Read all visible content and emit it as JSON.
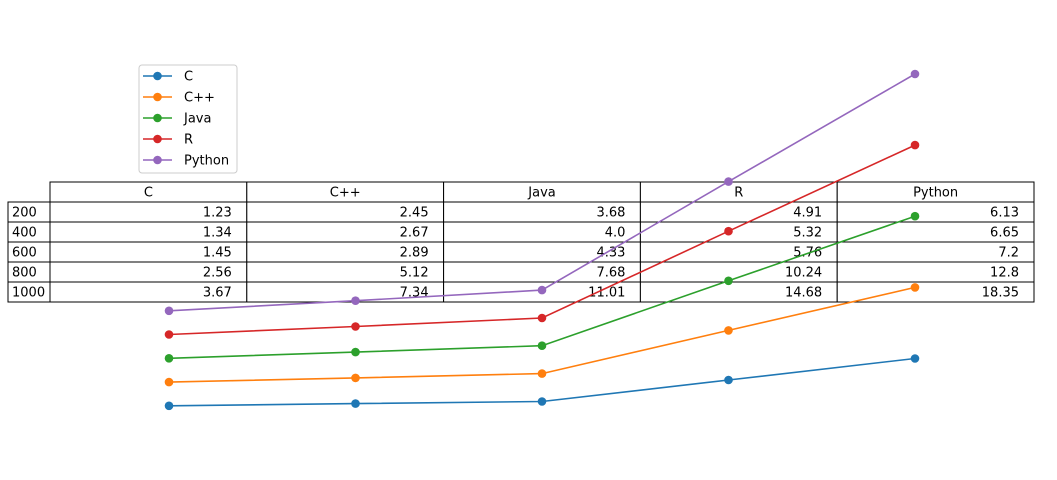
{
  "chart_data": {
    "type": "line",
    "x": [
      200,
      400,
      600,
      800,
      1000
    ],
    "series": [
      {
        "name": "C",
        "color": "#1f77b4",
        "values": [
          1.23,
          1.34,
          1.45,
          2.56,
          3.67
        ]
      },
      {
        "name": "C++",
        "color": "#ff7f0e",
        "values": [
          2.45,
          2.67,
          2.89,
          5.12,
          7.34
        ]
      },
      {
        "name": "Java",
        "color": "#2ca02c",
        "values": [
          3.68,
          4.0,
          4.33,
          7.68,
          11.01
        ]
      },
      {
        "name": "R",
        "color": "#d62728",
        "values": [
          4.91,
          5.32,
          5.76,
          10.24,
          14.68
        ]
      },
      {
        "name": "Python",
        "color": "#9467bd",
        "values": [
          6.13,
          6.65,
          7.2,
          12.8,
          18.35
        ]
      }
    ],
    "table": {
      "col_labels": [
        "C",
        "C++",
        "Java",
        "R",
        "Python"
      ],
      "row_labels": [
        "200",
        "400",
        "600",
        "800",
        "1000"
      ],
      "cells": [
        [
          "1.23",
          "2.45",
          "3.68",
          "4.91",
          "6.13"
        ],
        [
          "1.34",
          "2.67",
          "4.0",
          "5.32",
          "6.65"
        ],
        [
          "1.45",
          "2.89",
          "4.33",
          "5.76",
          "7.2"
        ],
        [
          "2.56",
          "5.12",
          "7.68",
          "10.24",
          "12.8"
        ],
        [
          "3.67",
          "7.34",
          "11.01",
          "14.68",
          "18.35"
        ]
      ]
    },
    "legend_position": "upper-left",
    "markers": "circle",
    "grid": false,
    "axes_visible": false
  }
}
